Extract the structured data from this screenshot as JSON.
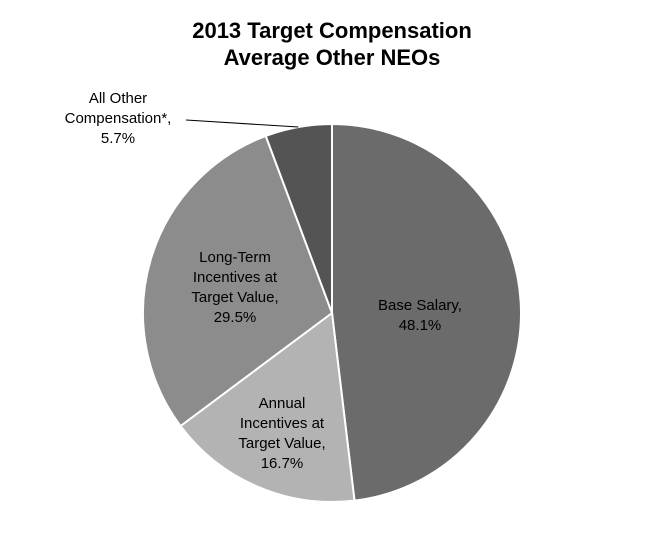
{
  "chart_data": {
    "type": "pie",
    "title": [
      "2013 Target Compensation",
      "Average Other NEOs"
    ],
    "slices": [
      {
        "label": [
          "Base Salary,",
          "48.1%"
        ],
        "value": 48.1,
        "color": "#6b6b6b"
      },
      {
        "label": [
          "Annual",
          "Incentives at",
          "Target Value,",
          "16.7%"
        ],
        "value": 16.7,
        "color": "#b3b3b3"
      },
      {
        "label": [
          "Long-Term",
          "Incentives at",
          "Target Value,",
          "29.5%"
        ],
        "value": 29.5,
        "color": "#8c8c8c"
      },
      {
        "label": [
          "All Other",
          "Compensation*,",
          "5.7%"
        ],
        "value": 5.7,
        "color": "#545454"
      }
    ],
    "legend": "none"
  }
}
